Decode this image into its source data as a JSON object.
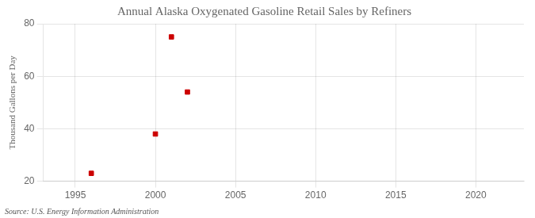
{
  "chart_data": {
    "type": "scatter",
    "title": "Annual Alaska Oxygenated Gasoline Retail Sales by Refiners",
    "y_label": "Thousand Gallons per Day",
    "annotations": [
      "Source: U.S. Energy Information Administration"
    ],
    "x": [
      1996,
      2000,
      2001,
      2002
    ],
    "values": [
      23,
      38,
      75,
      54
    ],
    "color": "#cc0000",
    "marker": "square",
    "xlim": [
      1993,
      2023
    ],
    "xticks": [
      1995,
      2000,
      2005,
      2010,
      2015,
      2020
    ],
    "ylim": [
      20,
      80
    ],
    "yticks": [
      20,
      40,
      60,
      80
    ],
    "grid": true
  }
}
